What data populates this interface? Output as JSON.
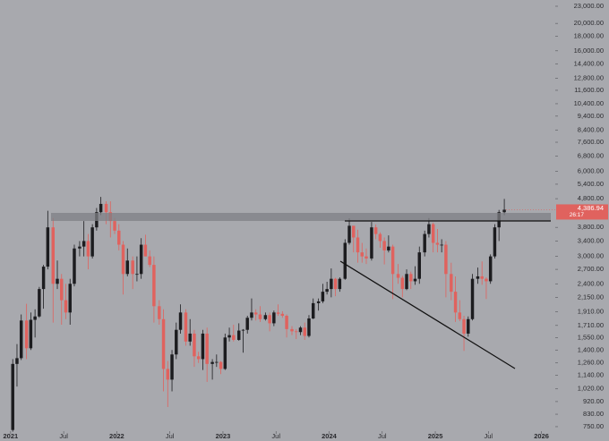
{
  "chart_data": {
    "type": "candlestick",
    "log_scale": true,
    "up_color": "#1c1c1f",
    "down_color": "#e0625e",
    "xlim": [
      2020.9,
      2026.13
    ],
    "xticks": [
      2021,
      {
        "value": 2021.5,
        "label": "Jul"
      },
      2022,
      {
        "value": 2022.5,
        "label": "Jul"
      },
      2023,
      {
        "value": 2023.5,
        "label": "Jul"
      },
      2024,
      {
        "value": 2024.5,
        "label": "Jul"
      },
      2025,
      {
        "value": 2025.5,
        "label": "Jul"
      },
      2026
    ],
    "ylim": [
      723,
      24200
    ],
    "yticks": [
      {
        "value": 23000,
        "label": "23,000.00"
      },
      {
        "value": 20000,
        "label": "20,000.00"
      },
      {
        "value": 18000,
        "label": "18,000.00"
      },
      {
        "value": 16000,
        "label": "16,000.00"
      },
      {
        "value": 14400,
        "label": "14,400.00"
      },
      {
        "value": 12800,
        "label": "12,800.00"
      },
      {
        "value": 11600,
        "label": "11,600.00"
      },
      {
        "value": 10400,
        "label": "10,400.00"
      },
      {
        "value": 9400,
        "label": "9,400.00"
      },
      {
        "value": 8400,
        "label": "8,400.00"
      },
      {
        "value": 7600,
        "label": "7,600.00"
      },
      {
        "value": 6800,
        "label": "6,800.00"
      },
      {
        "value": 6000,
        "label": "6,000.00"
      },
      {
        "value": 5400,
        "label": "5,400.00"
      },
      {
        "value": 4800,
        "label": "4,800.00"
      },
      {
        "value": 3800,
        "label": "3,800.00"
      },
      {
        "value": 3400,
        "label": "3,400.00"
      },
      {
        "value": 3000,
        "label": "3,000.00"
      },
      {
        "value": 2700,
        "label": "2,700.00"
      },
      {
        "value": 2400,
        "label": "2,400.00"
      },
      {
        "value": 2150,
        "label": "2,150.00"
      },
      {
        "value": 1910,
        "label": "1,910.00"
      },
      {
        "value": 1710,
        "label": "1,710.00"
      },
      {
        "value": 1550,
        "label": "1,550.00"
      },
      {
        "value": 1400,
        "label": "1,400.00"
      },
      {
        "value": 1260,
        "label": "1,260.00"
      },
      {
        "value": 1140,
        "label": "1,140.00"
      },
      {
        "value": 1020,
        "label": "1,020.00"
      },
      {
        "value": 920,
        "label": "920.00"
      },
      {
        "value": 830,
        "label": "830.00"
      },
      {
        "value": 750,
        "label": "750.00"
      }
    ],
    "last_price": {
      "value": 4386.94,
      "label": "4,386.94"
    },
    "countdown": "26:17",
    "x": [
      2021.02,
      2021.06,
      2021.1,
      2021.15,
      2021.19,
      2021.23,
      2021.27,
      2021.31,
      2021.35,
      2021.4,
      2021.44,
      2021.48,
      2021.52,
      2021.56,
      2021.6,
      2021.65,
      2021.69,
      2021.73,
      2021.77,
      2021.81,
      2021.85,
      2021.9,
      2021.94,
      2021.98,
      2022.02,
      2022.06,
      2022.1,
      2022.15,
      2022.19,
      2022.23,
      2022.27,
      2022.31,
      2022.35,
      2022.4,
      2022.44,
      2022.48,
      2022.52,
      2022.56,
      2022.6,
      2022.65,
      2022.69,
      2022.73,
      2022.77,
      2022.81,
      2022.85,
      2022.9,
      2022.94,
      2022.98,
      2023.02,
      2023.06,
      2023.1,
      2023.15,
      2023.19,
      2023.23,
      2023.27,
      2023.31,
      2023.35,
      2023.4,
      2023.44,
      2023.48,
      2023.52,
      2023.56,
      2023.6,
      2023.65,
      2023.69,
      2023.73,
      2023.77,
      2023.81,
      2023.85,
      2023.9,
      2023.94,
      2023.98,
      2024.02,
      2024.06,
      2024.1,
      2024.15,
      2024.19,
      2024.23,
      2024.27,
      2024.31,
      2024.35,
      2024.4,
      2024.44,
      2024.48,
      2024.52,
      2024.56,
      2024.6,
      2024.65,
      2024.69,
      2024.73,
      2024.77,
      2024.81,
      2024.85,
      2024.9,
      2024.94,
      2024.98,
      2025.02,
      2025.06,
      2025.1,
      2025.15,
      2025.19,
      2025.23,
      2025.27,
      2025.31,
      2025.35,
      2025.4,
      2025.44,
      2025.48,
      2025.52,
      2025.56,
      2025.6,
      2025.65
    ],
    "open": [
      730,
      1250,
      1310,
      1780,
      1420,
      1790,
      1840,
      2300,
      2760,
      3800,
      2400,
      2500,
      2100,
      1900,
      2400,
      3200,
      3250,
      3400,
      3000,
      3800,
      4300,
      4600,
      4300,
      4000,
      3700,
      3300,
      2600,
      2900,
      2600,
      2600,
      3300,
      3000,
      2800,
      2000,
      1800,
      1200,
      1100,
      1350,
      1650,
      1900,
      1500,
      1600,
      1330,
      1300,
      1600,
      1250,
      1270,
      1270,
      1200,
      1550,
      1580,
      1520,
      1640,
      1650,
      1820,
      1900,
      1870,
      1800,
      1860,
      1740,
      1900,
      1880,
      1850,
      1660,
      1630,
      1620,
      1680,
      1570,
      1810,
      2050,
      2080,
      2250,
      2300,
      2500,
      2300,
      2500,
      3350,
      3850,
      3500,
      3100,
      3000,
      2950,
      3800,
      3600,
      3400,
      3150,
      3250,
      2600,
      2520,
      2300,
      2600,
      2450,
      2500,
      3100,
      3600,
      3900,
      3350,
      3300,
      3300,
      2600,
      2250,
      1900,
      1800,
      1600,
      1800,
      2500,
      2550,
      2500,
      2450,
      3000,
      3800,
      4300
    ],
    "high": [
      1300,
      1470,
      1870,
      2040,
      1900,
      1950,
      2340,
      2800,
      4350,
      4100,
      2900,
      2600,
      2400,
      2500,
      3300,
      3400,
      4000,
      3600,
      3900,
      4450,
      4870,
      4700,
      4700,
      4100,
      3900,
      3400,
      3200,
      3000,
      3000,
      3480,
      3580,
      3150,
      3000,
      2100,
      1950,
      1280,
      1400,
      1750,
      2030,
      1950,
      1800,
      1650,
      1380,
      1650,
      1680,
      1300,
      1350,
      1280,
      1600,
      1680,
      1720,
      1740,
      1660,
      1850,
      2130,
      1950,
      2000,
      1900,
      1900,
      1930,
      2030,
      1920,
      1870,
      1700,
      1660,
      1700,
      1750,
      1860,
      2130,
      2130,
      2400,
      2440,
      2720,
      2520,
      2530,
      3450,
      4090,
      3720,
      3730,
      3350,
      3200,
      3970,
      3890,
      3650,
      3500,
      3560,
      3300,
      2820,
      2560,
      2700,
      2650,
      2770,
      3250,
      3700,
      4100,
      3950,
      3750,
      3450,
      3400,
      2850,
      2550,
      2100,
      1850,
      1840,
      2600,
      2740,
      2880,
      2530,
      3050,
      3900,
      4380,
      4790
    ],
    "low": [
      720,
      1040,
      1290,
      1300,
      1400,
      1550,
      1820,
      1960,
      2700,
      1750,
      2300,
      1720,
      1800,
      1720,
      2350,
      3000,
      3000,
      2700,
      2950,
      3700,
      4200,
      3900,
      3500,
      3600,
      3150,
      2200,
      2550,
      2300,
      2450,
      2500,
      3000,
      2750,
      1750,
      1720,
      1000,
      880,
      1000,
      1300,
      1600,
      1450,
      1450,
      1220,
      1260,
      1190,
      1080,
      1100,
      1220,
      1150,
      1190,
      1500,
      1500,
      1510,
      1370,
      1600,
      1780,
      1780,
      1760,
      1780,
      1630,
      1700,
      1850,
      1820,
      1550,
      1580,
      1530,
      1580,
      1520,
      1550,
      1800,
      1930,
      2050,
      2200,
      2150,
      2170,
      2250,
      2480,
      3300,
      3100,
      2850,
      2850,
      2820,
      2900,
      3450,
      3220,
      2810,
      3100,
      2120,
      2400,
      2150,
      2280,
      2300,
      2380,
      2400,
      3000,
      3500,
      3100,
      3100,
      3100,
      2150,
      2100,
      1760,
      1770,
      1390,
      1560,
      1780,
      2400,
      2380,
      2120,
      2400,
      2950,
      3400,
      4200
    ],
    "close": [
      1250,
      1310,
      1780,
      1420,
      1790,
      1840,
      2300,
      2760,
      3800,
      2400,
      2500,
      2100,
      1900,
      2400,
      3200,
      3250,
      3400,
      3000,
      3800,
      4300,
      4600,
      4300,
      4000,
      3700,
      3300,
      2600,
      2900,
      2600,
      2600,
      3300,
      3000,
      2800,
      2000,
      1800,
      1200,
      1100,
      1350,
      1650,
      1900,
      1500,
      1600,
      1330,
      1300,
      1600,
      1250,
      1270,
      1270,
      1200,
      1550,
      1580,
      1520,
      1640,
      1650,
      1820,
      1900,
      1870,
      1800,
      1860,
      1740,
      1900,
      1880,
      1850,
      1660,
      1630,
      1620,
      1680,
      1570,
      1810,
      2050,
      2080,
      2250,
      2300,
      2500,
      2300,
      2500,
      3350,
      3850,
      3500,
      3100,
      3000,
      2950,
      3800,
      3600,
      3400,
      3150,
      3250,
      2600,
      2520,
      2300,
      2600,
      2450,
      2500,
      3100,
      3600,
      3900,
      3350,
      3300,
      3300,
      2600,
      2250,
      1900,
      1800,
      1600,
      1800,
      2500,
      2550,
      2500,
      2450,
      3000,
      3800,
      4300,
      4386.94
    ]
  }
}
